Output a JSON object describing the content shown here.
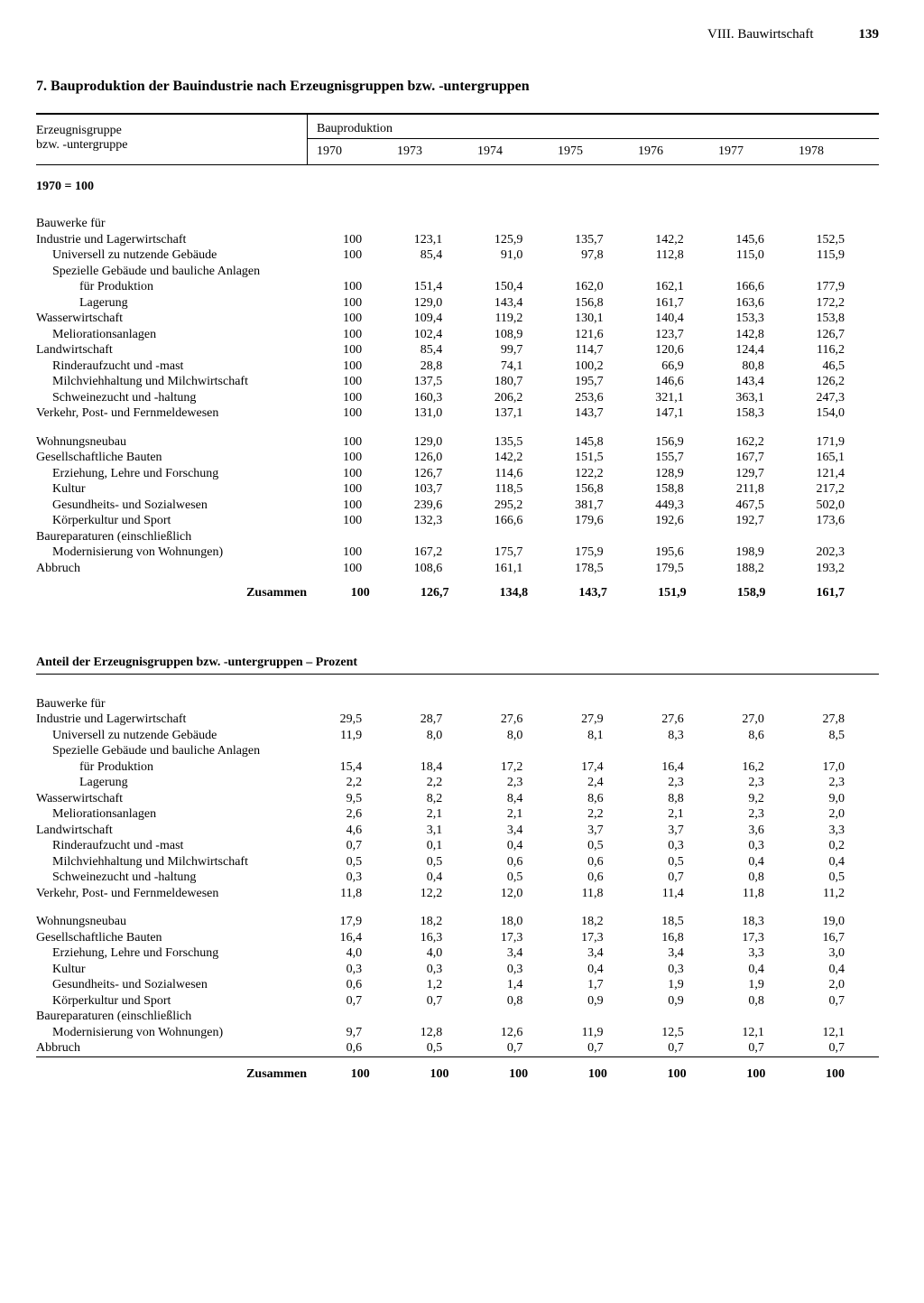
{
  "header": {
    "chapter": "VIII. Bauwirtschaft",
    "page": "139"
  },
  "title": "7. Bauproduktion der Bauindustrie nach Erzeugnisgruppen bzw. -untergruppen",
  "col_label_1": "Erzeugnisgruppe",
  "col_label_2": "bzw. -untergruppe",
  "col_group": "Bauproduktion",
  "years": [
    "1970",
    "1973",
    "1974",
    "1975",
    "1976",
    "1977",
    "1978"
  ],
  "s1": {
    "index_base": "1970 = 100",
    "lead": "Bauwerke für",
    "rows": [
      {
        "l": "Industrie und Lagerwirtschaft",
        "i": 0,
        "v": [
          "100",
          "123,1",
          "125,9",
          "135,7",
          "142,2",
          "145,6",
          "152,5"
        ]
      },
      {
        "l": "Universell zu nutzende Gebäude",
        "i": 1,
        "v": [
          "100",
          "85,4",
          "91,0",
          "97,8",
          "112,8",
          "115,0",
          "115,9"
        ]
      },
      {
        "l": "Spezielle Gebäude und bauliche Anlagen",
        "i": 1,
        "v": []
      },
      {
        "l": "für Produktion",
        "i": 2,
        "v": [
          "100",
          "151,4",
          "150,4",
          "162,0",
          "162,1",
          "166,6",
          "177,9"
        ]
      },
      {
        "l": "Lagerung",
        "i": 2,
        "v": [
          "100",
          "129,0",
          "143,4",
          "156,8",
          "161,7",
          "163,6",
          "172,2"
        ]
      },
      {
        "l": "Wasserwirtschaft",
        "i": 0,
        "v": [
          "100",
          "109,4",
          "119,2",
          "130,1",
          "140,4",
          "153,3",
          "153,8"
        ]
      },
      {
        "l": "Meliorationsanlagen",
        "i": 1,
        "v": [
          "100",
          "102,4",
          "108,9",
          "121,6",
          "123,7",
          "142,8",
          "126,7"
        ]
      },
      {
        "l": "Landwirtschaft",
        "i": 0,
        "v": [
          "100",
          "85,4",
          "99,7",
          "114,7",
          "120,6",
          "124,4",
          "116,2"
        ]
      },
      {
        "l": "Rinderaufzucht und -mast",
        "i": 1,
        "v": [
          "100",
          "28,8",
          "74,1",
          "100,2",
          "66,9",
          "80,8",
          "46,5"
        ]
      },
      {
        "l": "Milchviehhaltung und Milchwirtschaft",
        "i": 1,
        "v": [
          "100",
          "137,5",
          "180,7",
          "195,7",
          "146,6",
          "143,4",
          "126,2"
        ]
      },
      {
        "l": "Schweinezucht und -haltung",
        "i": 1,
        "v": [
          "100",
          "160,3",
          "206,2",
          "253,6",
          "321,1",
          "363,1",
          "247,3"
        ]
      },
      {
        "l": "Verkehr, Post- und Fernmeldewesen",
        "i": 0,
        "v": [
          "100",
          "131,0",
          "137,1",
          "143,7",
          "147,1",
          "158,3",
          "154,0"
        ]
      }
    ],
    "rows2": [
      {
        "l": "Wohnungsneubau",
        "i": 0,
        "v": [
          "100",
          "129,0",
          "135,5",
          "145,8",
          "156,9",
          "162,2",
          "171,9"
        ]
      },
      {
        "l": "Gesellschaftliche Bauten",
        "i": 0,
        "v": [
          "100",
          "126,0",
          "142,2",
          "151,5",
          "155,7",
          "167,7",
          "165,1"
        ]
      },
      {
        "l": "Erziehung, Lehre und Forschung",
        "i": 1,
        "v": [
          "100",
          "126,7",
          "114,6",
          "122,2",
          "128,9",
          "129,7",
          "121,4"
        ]
      },
      {
        "l": "Kultur",
        "i": 1,
        "v": [
          "100",
          "103,7",
          "118,5",
          "156,8",
          "158,8",
          "211,8",
          "217,2"
        ]
      },
      {
        "l": "Gesundheits- und Sozialwesen",
        "i": 1,
        "v": [
          "100",
          "239,6",
          "295,2",
          "381,7",
          "449,3",
          "467,5",
          "502,0"
        ]
      },
      {
        "l": "Körperkultur und Sport",
        "i": 1,
        "v": [
          "100",
          "132,3",
          "166,6",
          "179,6",
          "192,6",
          "192,7",
          "173,6"
        ]
      },
      {
        "l": "Baureparaturen (einschließlich",
        "i": 0,
        "v": []
      },
      {
        "l": "Modernisierung von Wohnungen)",
        "i": 1,
        "v": [
          "100",
          "167,2",
          "175,7",
          "175,9",
          "195,6",
          "198,9",
          "202,3"
        ]
      },
      {
        "l": "Abbruch",
        "i": 0,
        "v": [
          "100",
          "108,6",
          "161,1",
          "178,5",
          "179,5",
          "188,2",
          "193,2"
        ]
      }
    ],
    "sum": {
      "l": "Zusammen",
      "v": [
        "100",
        "126,7",
        "134,8",
        "143,7",
        "151,9",
        "158,9",
        "161,7"
      ]
    }
  },
  "s2": {
    "head": "Anteil der Erzeugnisgruppen bzw. -untergruppen – Prozent",
    "lead": "Bauwerke für",
    "rows": [
      {
        "l": "Industrie und Lagerwirtschaft",
        "i": 0,
        "v": [
          "29,5",
          "28,7",
          "27,6",
          "27,9",
          "27,6",
          "27,0",
          "27,8"
        ]
      },
      {
        "l": "Universell zu nutzende Gebäude",
        "i": 1,
        "v": [
          "11,9",
          "8,0",
          "8,0",
          "8,1",
          "8,3",
          "8,6",
          "8,5"
        ]
      },
      {
        "l": "Spezielle Gebäude und bauliche Anlagen",
        "i": 1,
        "v": []
      },
      {
        "l": "für Produktion",
        "i": 2,
        "v": [
          "15,4",
          "18,4",
          "17,2",
          "17,4",
          "16,4",
          "16,2",
          "17,0"
        ]
      },
      {
        "l": "Lagerung",
        "i": 2,
        "v": [
          "2,2",
          "2,2",
          "2,3",
          "2,4",
          "2,3",
          "2,3",
          "2,3"
        ]
      },
      {
        "l": "Wasserwirtschaft",
        "i": 0,
        "v": [
          "9,5",
          "8,2",
          "8,4",
          "8,6",
          "8,8",
          "9,2",
          "9,0"
        ]
      },
      {
        "l": "Meliorationsanlagen",
        "i": 1,
        "v": [
          "2,6",
          "2,1",
          "2,1",
          "2,2",
          "2,1",
          "2,3",
          "2,0"
        ]
      },
      {
        "l": "Landwirtschaft",
        "i": 0,
        "v": [
          "4,6",
          "3,1",
          "3,4",
          "3,7",
          "3,7",
          "3,6",
          "3,3"
        ]
      },
      {
        "l": "Rinderaufzucht und -mast",
        "i": 1,
        "v": [
          "0,7",
          "0,1",
          "0,4",
          "0,5",
          "0,3",
          "0,3",
          "0,2"
        ]
      },
      {
        "l": "Milchviehhaltung und Milchwirtschaft",
        "i": 1,
        "v": [
          "0,5",
          "0,5",
          "0,6",
          "0,6",
          "0,5",
          "0,4",
          "0,4"
        ]
      },
      {
        "l": "Schweinezucht und -haltung",
        "i": 1,
        "v": [
          "0,3",
          "0,4",
          "0,5",
          "0,6",
          "0,7",
          "0,8",
          "0,5"
        ]
      },
      {
        "l": "Verkehr, Post- und Fernmeldewesen",
        "i": 0,
        "v": [
          "11,8",
          "12,2",
          "12,0",
          "11,8",
          "11,4",
          "11,8",
          "11,2"
        ]
      }
    ],
    "rows2": [
      {
        "l": "Wohnungsneubau",
        "i": 0,
        "v": [
          "17,9",
          "18,2",
          "18,0",
          "18,2",
          "18,5",
          "18,3",
          "19,0"
        ]
      },
      {
        "l": "Gesellschaftliche Bauten",
        "i": 0,
        "v": [
          "16,4",
          "16,3",
          "17,3",
          "17,3",
          "16,8",
          "17,3",
          "16,7"
        ]
      },
      {
        "l": "Erziehung, Lehre und Forschung",
        "i": 1,
        "v": [
          "4,0",
          "4,0",
          "3,4",
          "3,4",
          "3,4",
          "3,3",
          "3,0"
        ]
      },
      {
        "l": "Kultur",
        "i": 1,
        "v": [
          "0,3",
          "0,3",
          "0,3",
          "0,4",
          "0,3",
          "0,4",
          "0,4"
        ]
      },
      {
        "l": "Gesundheits- und Sozialwesen",
        "i": 1,
        "v": [
          "0,6",
          "1,2",
          "1,4",
          "1,7",
          "1,9",
          "1,9",
          "2,0"
        ]
      },
      {
        "l": "Körperkultur und Sport",
        "i": 1,
        "v": [
          "0,7",
          "0,7",
          "0,8",
          "0,9",
          "0,9",
          "0,8",
          "0,7"
        ]
      },
      {
        "l": "Baureparaturen (einschließlich",
        "i": 0,
        "v": []
      },
      {
        "l": "Modernisierung von Wohnungen)",
        "i": 1,
        "v": [
          "9,7",
          "12,8",
          "12,6",
          "11,9",
          "12,5",
          "12,1",
          "12,1"
        ]
      },
      {
        "l": "Abbruch",
        "i": 0,
        "v": [
          "0,6",
          "0,5",
          "0,7",
          "0,7",
          "0,7",
          "0,7",
          "0,7"
        ]
      }
    ],
    "sum": {
      "l": "Zusammen",
      "v": [
        "100",
        "100",
        "100",
        "100",
        "100",
        "100",
        "100"
      ]
    }
  }
}
